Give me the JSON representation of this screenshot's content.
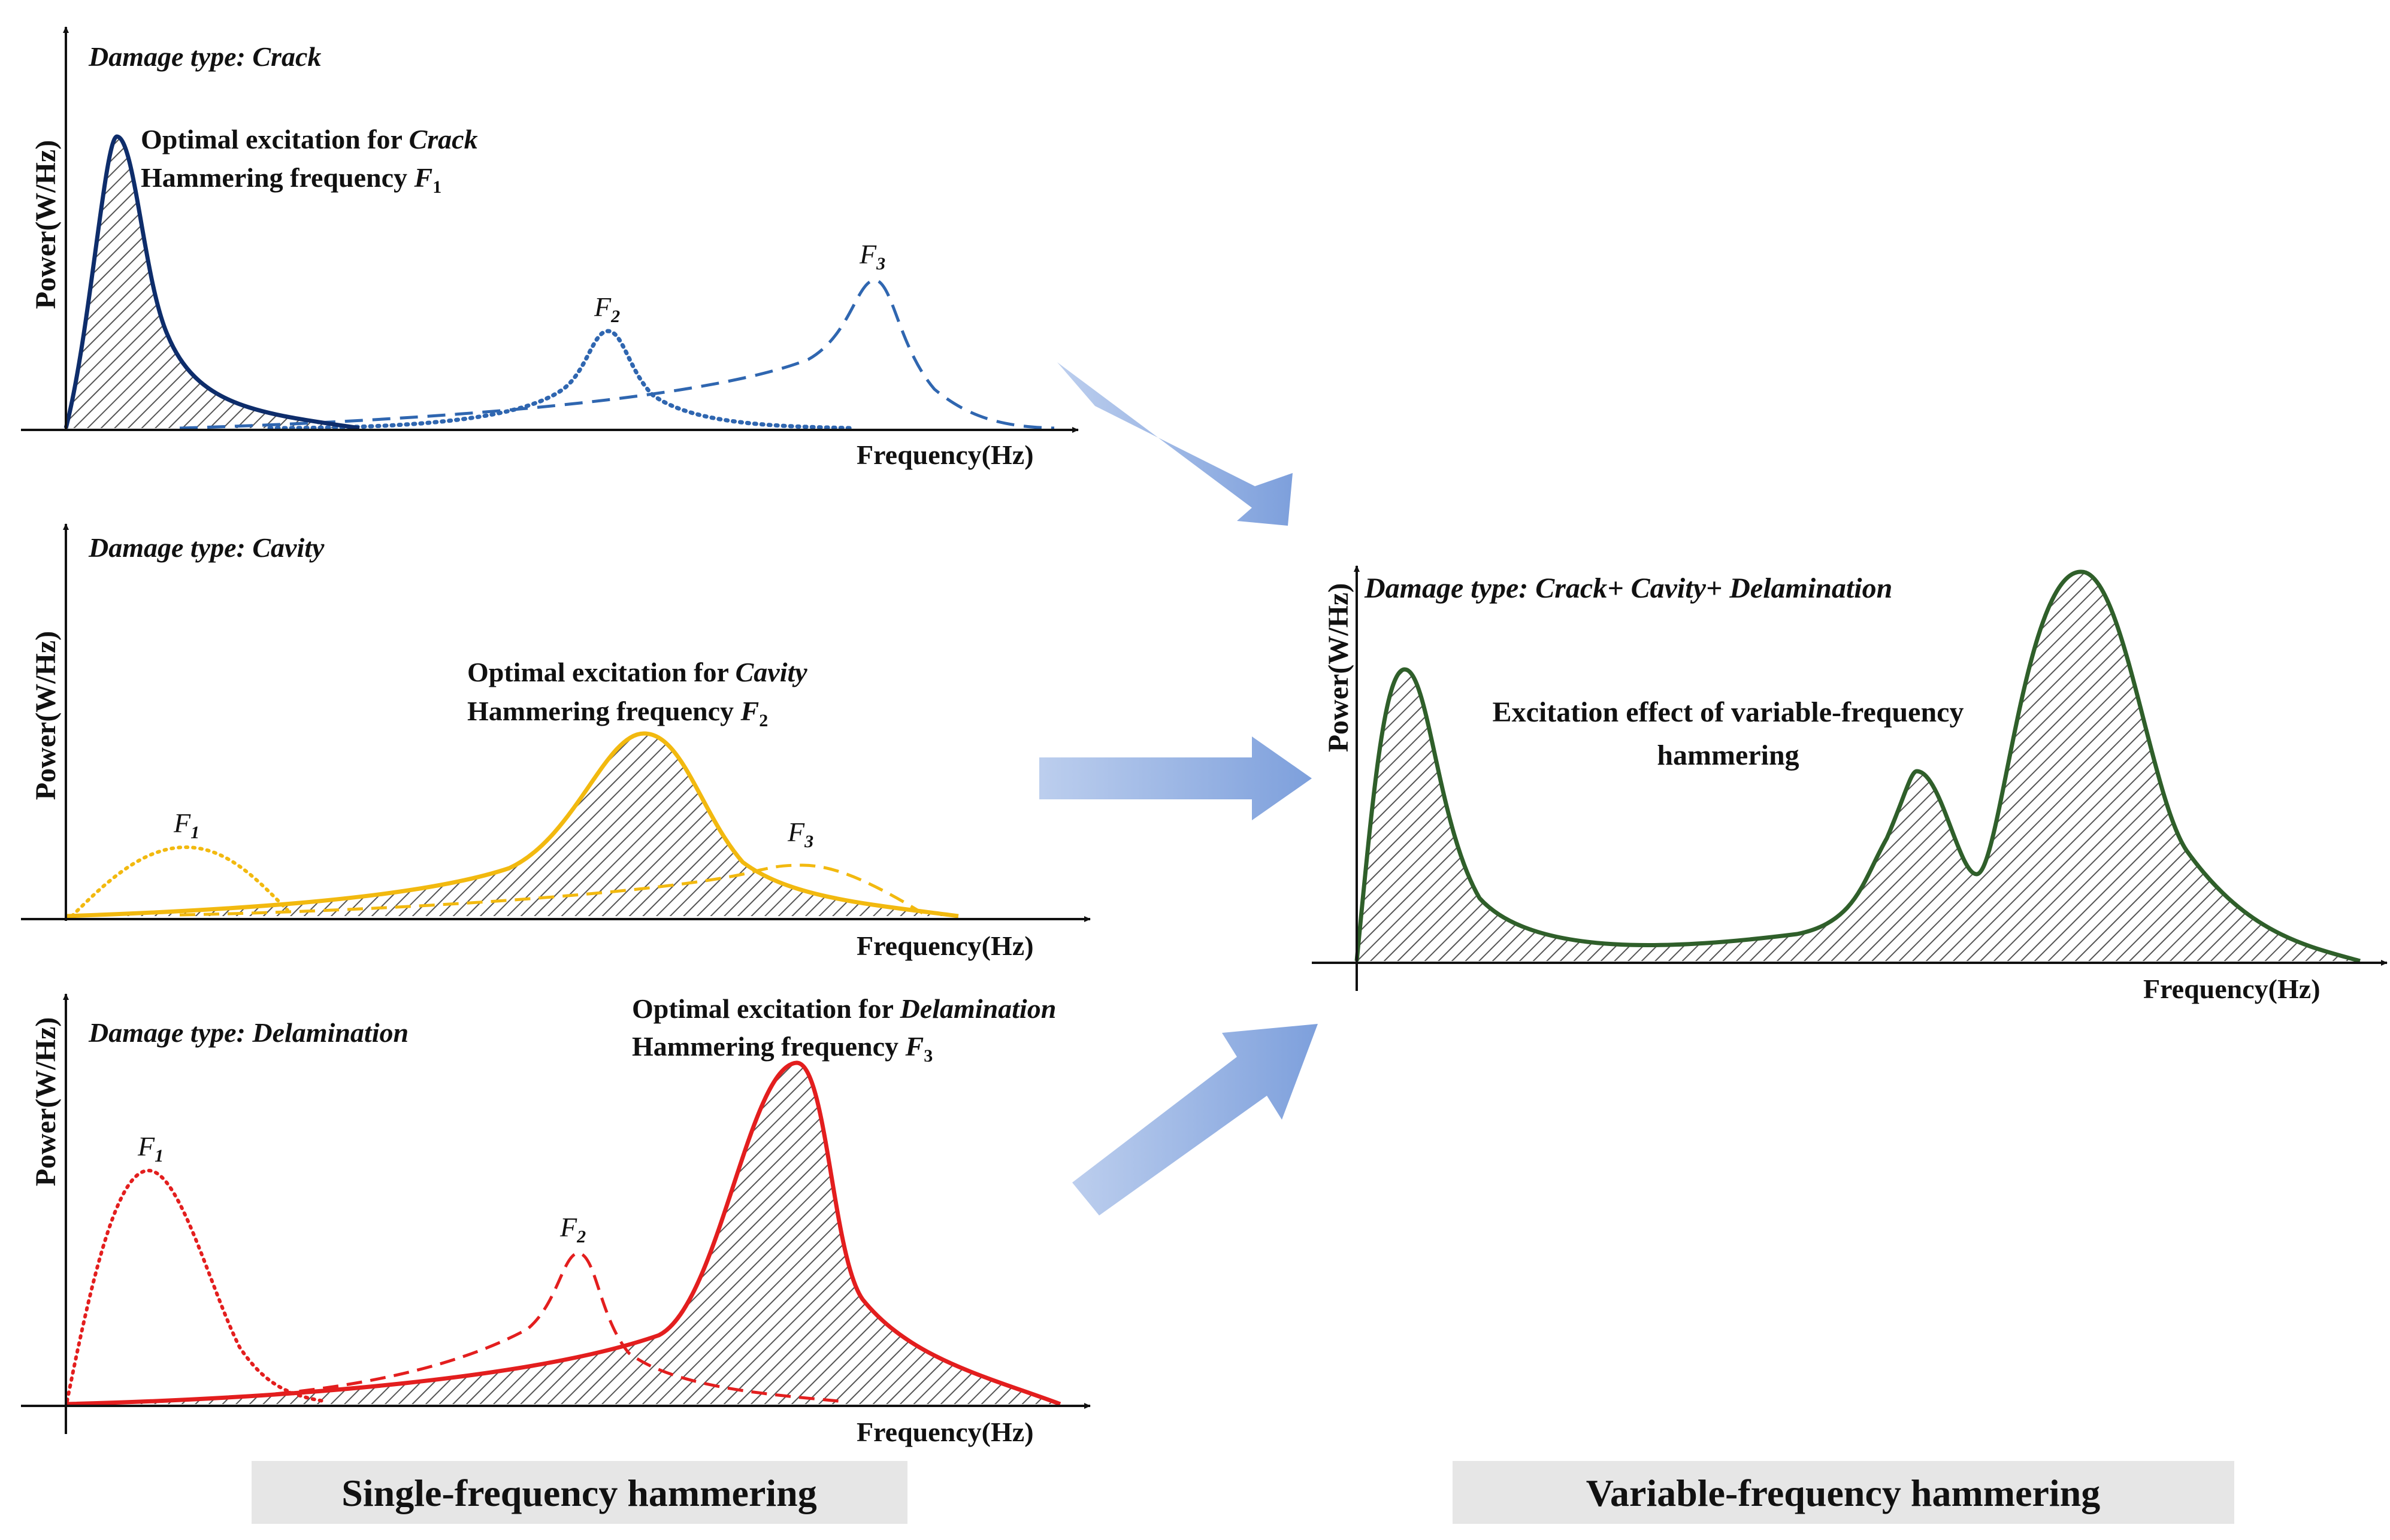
{
  "panels": {
    "crack": {
      "damage_type_label": "Damage type: ",
      "damage_type": "Crack",
      "optimal_prefix": "Optimal excitation for ",
      "optimal_target": "Crack",
      "hammering_prefix": "Hammering frequency ",
      "hammering_symbol": "F",
      "hammering_sub": "1",
      "ylabel": "Power(W/Hz)",
      "xlabel": "Frequency(Hz)",
      "peaks": [
        {
          "symbol": "F",
          "sub": "2"
        },
        {
          "symbol": "F",
          "sub": "3"
        }
      ],
      "line_color": "#0e2d6b",
      "secondary_color": "#2f66b0"
    },
    "cavity": {
      "damage_type_label": "Damage type: ",
      "damage_type": "Cavity",
      "optimal_prefix": "Optimal excitation for ",
      "optimal_target": "Cavity",
      "hammering_prefix": "Hammering frequency ",
      "hammering_symbol": "F",
      "hammering_sub": "2",
      "ylabel": "Power(W/Hz)",
      "xlabel": "Frequency(Hz)",
      "peaks": [
        {
          "symbol": "F",
          "sub": "1"
        },
        {
          "symbol": "F",
          "sub": "3"
        }
      ],
      "line_color": "#f2b90f"
    },
    "delamination": {
      "damage_type_label": "Damage type: ",
      "damage_type": "Delamination",
      "optimal_prefix": "Optimal excitation for ",
      "optimal_target": "Delamination",
      "hammering_prefix": "Hammering frequency ",
      "hammering_symbol": "F",
      "hammering_sub": "3",
      "ylabel": "Power(W/Hz)",
      "xlabel": "Frequency(Hz)",
      "peaks": [
        {
          "symbol": "F",
          "sub": "1"
        },
        {
          "symbol": "F",
          "sub": "2"
        }
      ],
      "line_color": "#e31e1e"
    },
    "combined": {
      "damage_type_label": "Damage type: ",
      "damage_type": "Crack+ Cavity+ Delamination",
      "effect_line1": "Excitation effect of variable-frequency",
      "effect_line2": "hammering",
      "ylabel": "Power(W/Hz)",
      "xlabel": "Frequency(Hz)",
      "line_color": "#2f5f2a"
    }
  },
  "captions": {
    "left": "Single-frequency hammering",
    "right": "Variable-frequency hammering"
  },
  "colors": {
    "arrow": "#8aaee0",
    "caption_bg": "#e6e6e6",
    "hatch": "#555555"
  }
}
